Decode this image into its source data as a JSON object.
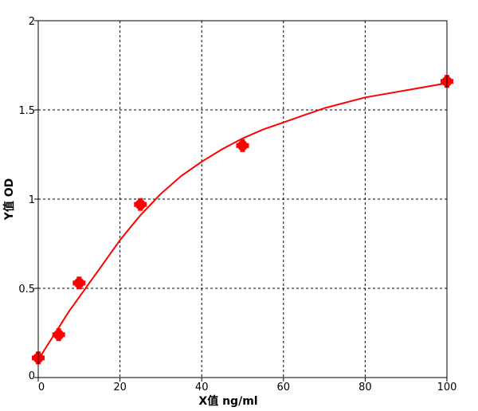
{
  "chart_data": {
    "type": "scatter",
    "title": "",
    "xlabel": "X值 ng/ml",
    "ylabel": "Y值 OD",
    "xlim": [
      0,
      100
    ],
    "ylim": [
      0,
      2
    ],
    "x_ticks": [
      0,
      20,
      40,
      60,
      80,
      100
    ],
    "y_ticks": [
      0,
      0.5,
      1,
      1.5,
      2
    ],
    "x_tick_labels": [
      "0",
      "20",
      "40",
      "60",
      "80",
      "100"
    ],
    "y_tick_labels": [
      "0",
      "0.5",
      "1",
      "1.5",
      "2"
    ],
    "grid": true,
    "grid_style": "dashed",
    "series": [
      {
        "type": "scatter",
        "color": "#ff0000",
        "x": [
          0,
          5,
          10,
          25,
          50,
          100
        ],
        "y": [
          0.11,
          0.24,
          0.53,
          0.97,
          1.3,
          1.66
        ]
      },
      {
        "type": "line",
        "color": "#ff0000",
        "x": [
          0,
          2.5,
          5,
          7.5,
          10,
          12.5,
          15,
          17.5,
          20,
          22.5,
          25,
          30,
          35,
          40,
          45,
          50,
          55,
          60,
          65,
          70,
          75,
          80,
          85,
          90,
          95,
          100
        ],
        "y": [
          0.1,
          0.19,
          0.28,
          0.37,
          0.45,
          0.53,
          0.61,
          0.69,
          0.77,
          0.84,
          0.91,
          1.03,
          1.13,
          1.21,
          1.28,
          1.34,
          1.39,
          1.43,
          1.47,
          1.51,
          1.54,
          1.57,
          1.59,
          1.61,
          1.63,
          1.65
        ]
      }
    ]
  }
}
